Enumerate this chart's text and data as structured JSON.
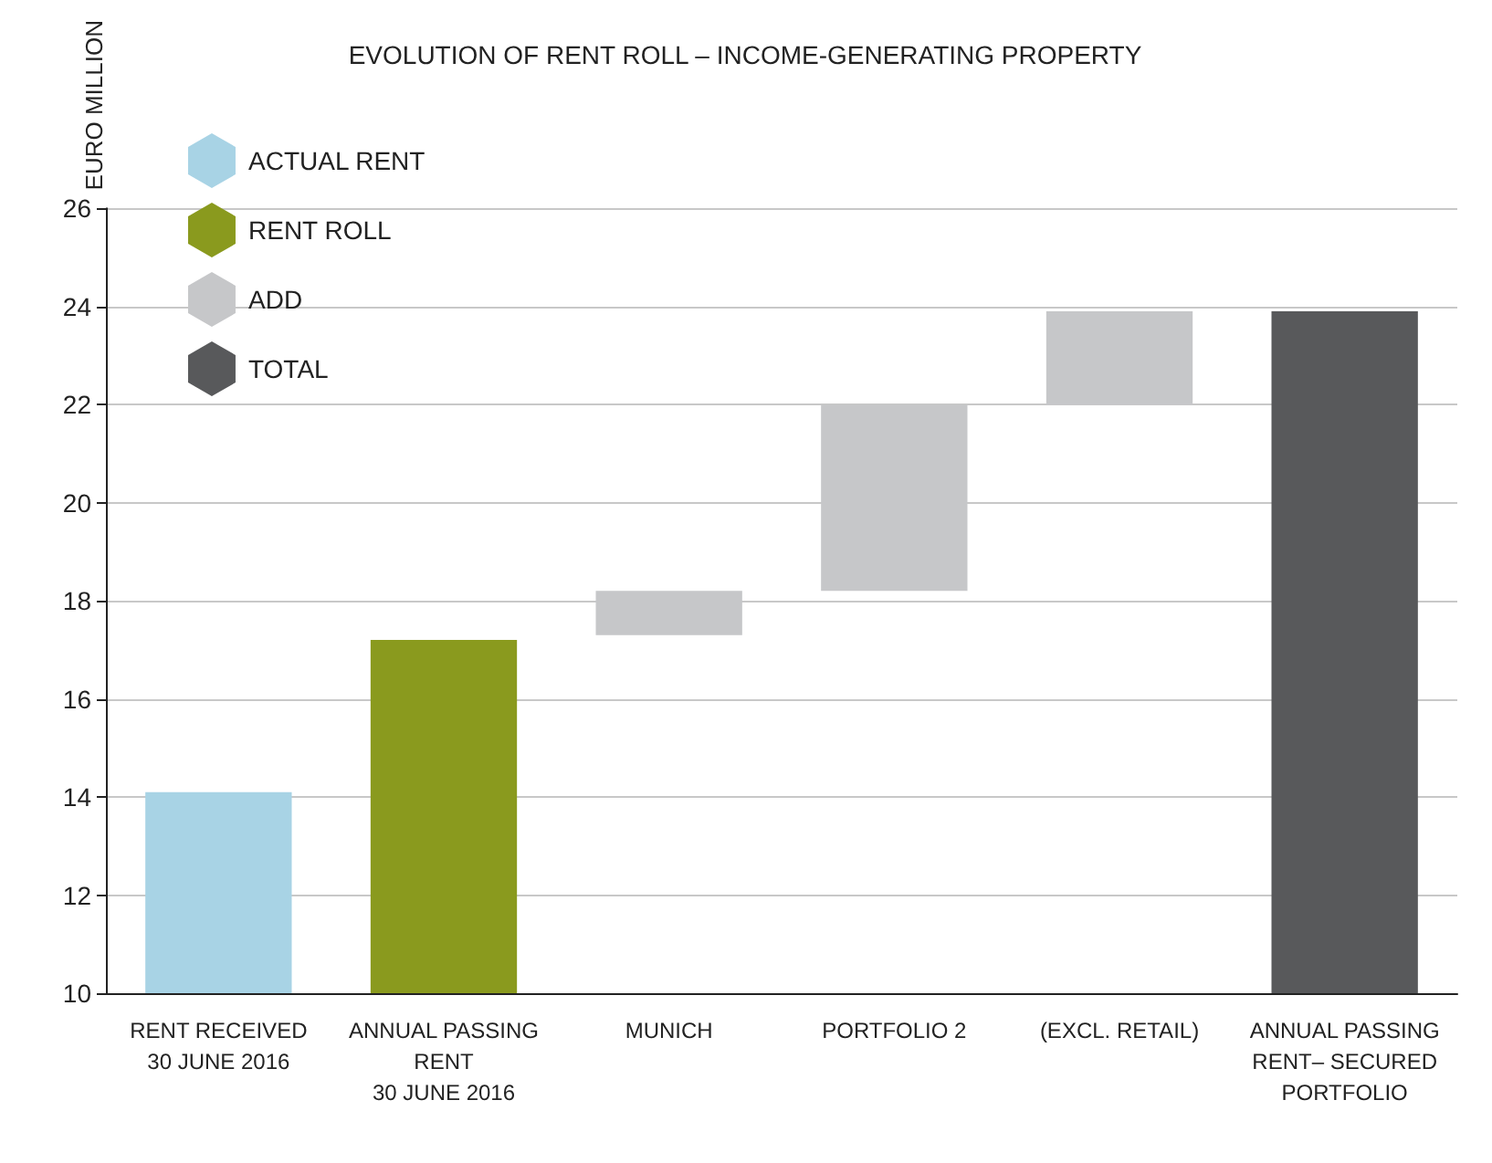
{
  "chart_data": {
    "type": "bar",
    "title": "EVOLUTION OF RENT ROLL – INCOME-GENERATING PROPERTY",
    "ylabel": "EURO MILLION",
    "categories": [
      "RENT RECEIVED\n30 JUNE 2016",
      "ANNUAL PASSING\nRENT\n30 JUNE 2016",
      "MUNICH",
      "PORTFOLIO 2",
      "(EXCL. RETAIL)",
      "ANNUAL PASSING\nRENT– SECURED\nPORTFOLIO"
    ],
    "series": [
      {
        "name": "ACTUAL RENT",
        "color": "#a8d3e5",
        "values": [
          14.1,
          null,
          null,
          null,
          null,
          null
        ]
      },
      {
        "name": "RENT ROLL",
        "color": "#8a9a1e",
        "values": [
          null,
          17.2,
          null,
          null,
          null,
          null
        ]
      },
      {
        "name": "ADD",
        "color": "#c6c7c9",
        "base": [
          null,
          null,
          17.3,
          18.2,
          22.0,
          null
        ],
        "values": [
          null,
          null,
          0.9,
          3.8,
          1.9,
          null
        ]
      },
      {
        "name": "TOTAL",
        "color": "#58595b",
        "values": [
          null,
          null,
          null,
          null,
          null,
          23.9
        ]
      }
    ],
    "ylim": [
      10,
      26
    ],
    "yticks": [
      10,
      12,
      14,
      16,
      18,
      20,
      22,
      24,
      26
    ],
    "grid": "y",
    "legend": "top left",
    "marker": "hexagon"
  }
}
